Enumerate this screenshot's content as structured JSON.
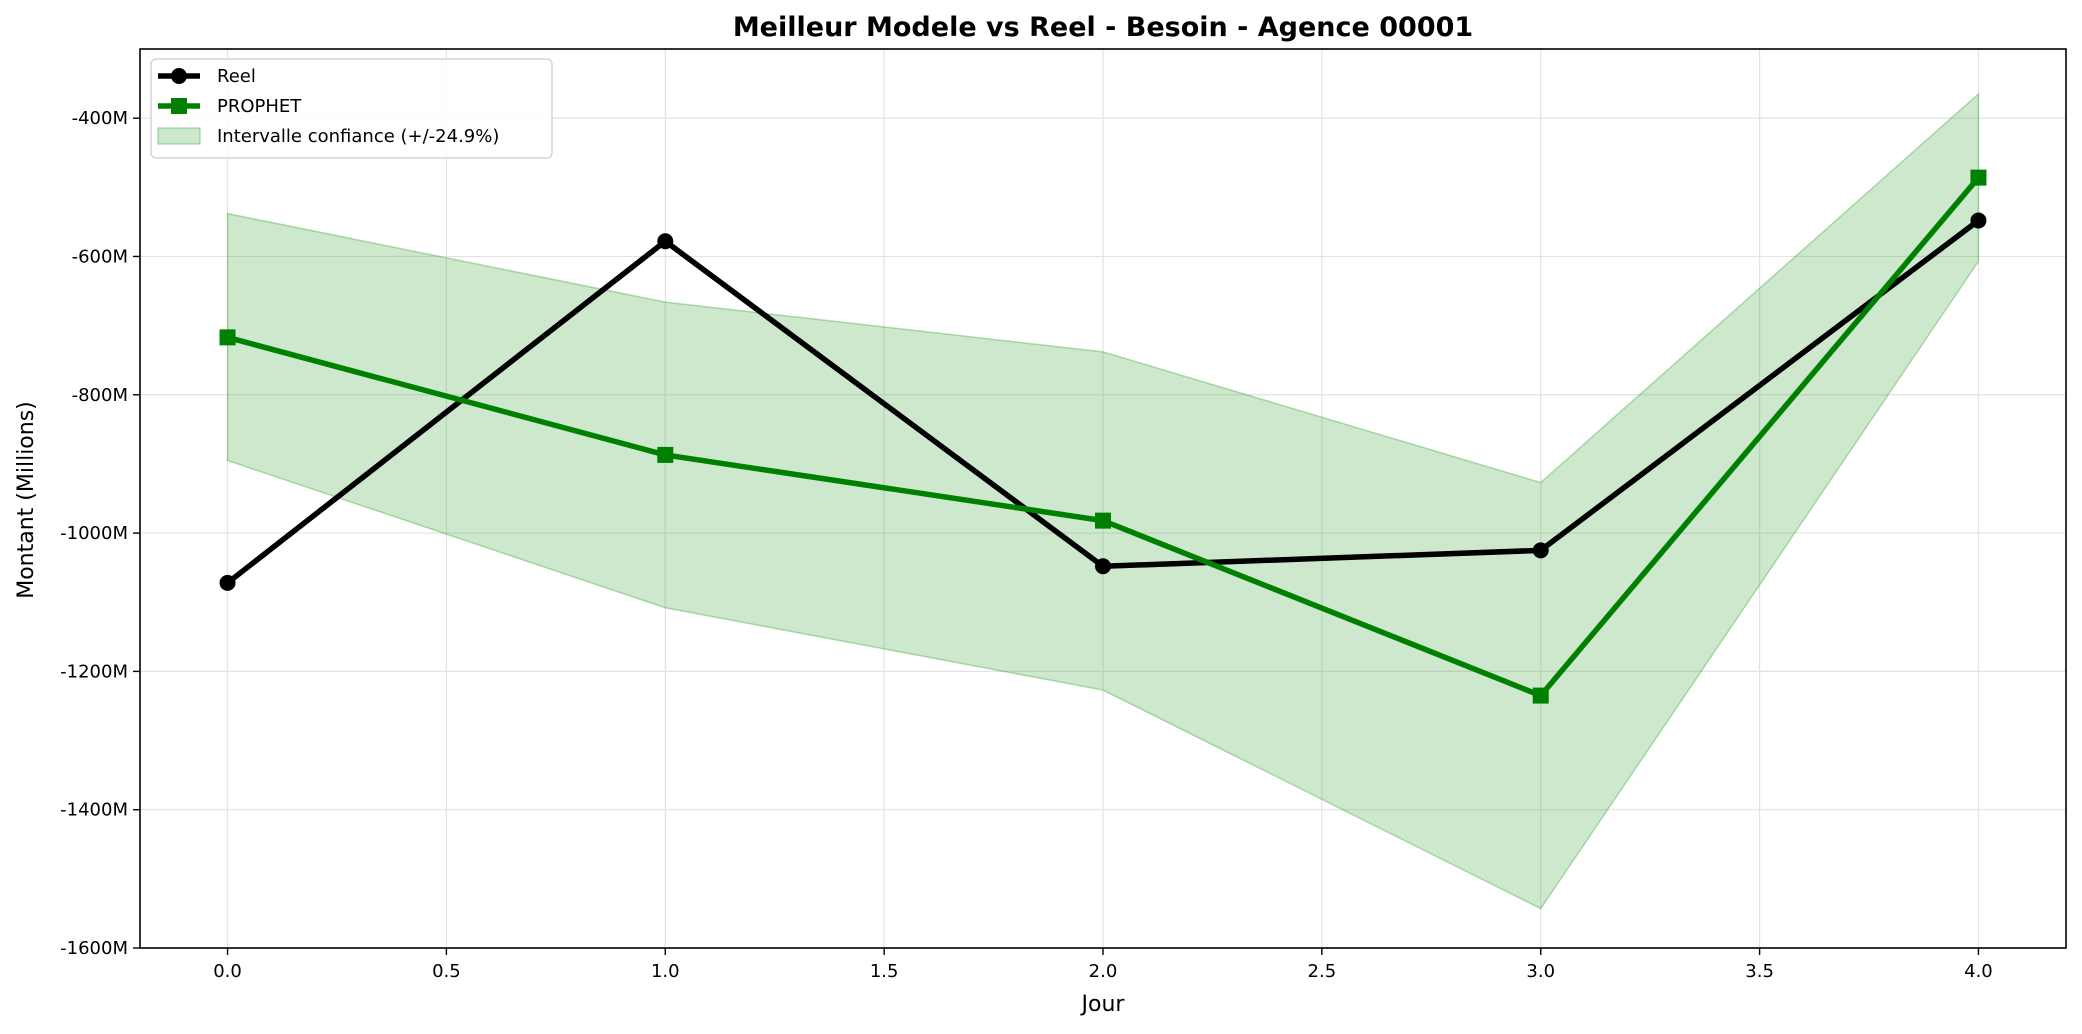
{
  "chart_data": {
    "type": "line",
    "title": "Meilleur Modele vs Reel - Besoin - Agence 00001",
    "xlabel": "Jour",
    "ylabel": "Montant (Millions)",
    "xlim": [
      -0.2,
      4.2
    ],
    "ylim": [
      -1600,
      -300
    ],
    "xticks": [
      0.0,
      0.5,
      1.0,
      1.5,
      2.0,
      2.5,
      3.0,
      3.5,
      4.0
    ],
    "xtick_labels": [
      "0.0",
      "0.5",
      "1.0",
      "1.5",
      "2.0",
      "2.5",
      "3.0",
      "3.5",
      "4.0"
    ],
    "yticks": [
      -1600,
      -1400,
      -1200,
      -1000,
      -800,
      -600,
      -400
    ],
    "ytick_labels": [
      "-1600M",
      "-1400M",
      "-1200M",
      "-1000M",
      "-800M",
      "-600M",
      "-400M"
    ],
    "grid": true,
    "legend_position": "top-left",
    "x": [
      0,
      1,
      2,
      3,
      4
    ],
    "series": [
      {
        "name": "Reel",
        "values": [
          -1072,
          -578,
          -1048,
          -1025,
          -548
        ],
        "color": "#000000",
        "marker": "circle"
      },
      {
        "name": "PROPHET",
        "values": [
          -717,
          -887,
          -982,
          -1235,
          -486
        ],
        "color": "#008000",
        "marker": "square"
      }
    ],
    "band": {
      "name": "Intervalle confiance (+/-24.9%)",
      "color": "#2ca02c",
      "lower": [
        -895,
        -1108,
        -1227,
        -1543,
        -607
      ],
      "upper": [
        -538,
        -666,
        -738,
        -927,
        -365
      ]
    }
  }
}
